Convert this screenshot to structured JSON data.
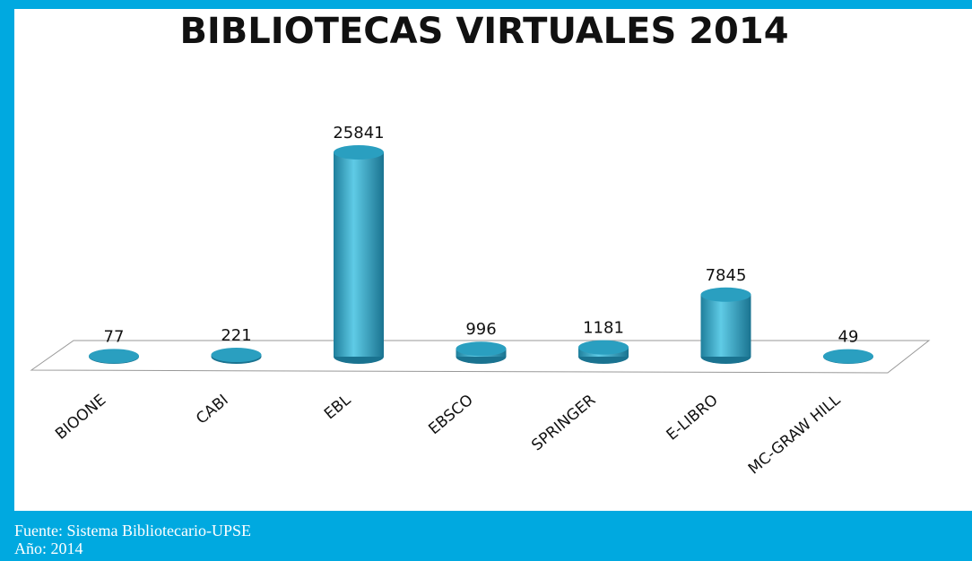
{
  "chart_data": {
    "type": "bar3d",
    "title": "BIBLIOTECAS VIRTUALES 2014",
    "categories": [
      "BIOONE",
      "CABI",
      "EBL",
      "EBSCO",
      "SPRINGER",
      "E-LIBRO",
      "MC-GRAW HILL"
    ],
    "values": [
      77,
      221,
      25841,
      996,
      1181,
      7845,
      49
    ],
    "color": "#2a9fc0"
  },
  "footer": {
    "source": "Fuente: Sistema Bibliotecario-UPSE",
    "year": "Año: 2014"
  }
}
